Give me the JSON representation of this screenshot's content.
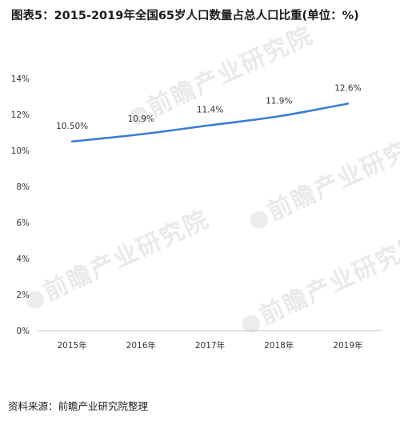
{
  "title": "图表5：2015-2019年全国65岁人口数量占总人口比重(单位：%)",
  "source": "资料来源：前瞻产业研究院整理",
  "watermark": "前瞻产业研究院",
  "colors": {
    "line": "#3a7dd8",
    "axis": "#bfbfbf",
    "text": "#333333"
  },
  "chart_data": {
    "type": "line",
    "title": "图表5：2015-2019年全国65岁人口数量占总人口比重(单位：%)",
    "categories": [
      "2015年",
      "2016年",
      "2017年",
      "2018年",
      "2019年"
    ],
    "series": [
      {
        "values": [
          10.5,
          10.9,
          11.4,
          11.9,
          12.6
        ]
      }
    ],
    "data_labels": [
      "10.50%",
      "10.9%",
      "11.4%",
      "11.9%",
      "12.6%"
    ],
    "yticks": [
      "0%",
      "2%",
      "4%",
      "6%",
      "8%",
      "10%",
      "12%",
      "14%"
    ],
    "ylim": [
      0,
      14
    ],
    "xlabel": "",
    "ylabel": "",
    "grid": false,
    "legend": "none"
  }
}
